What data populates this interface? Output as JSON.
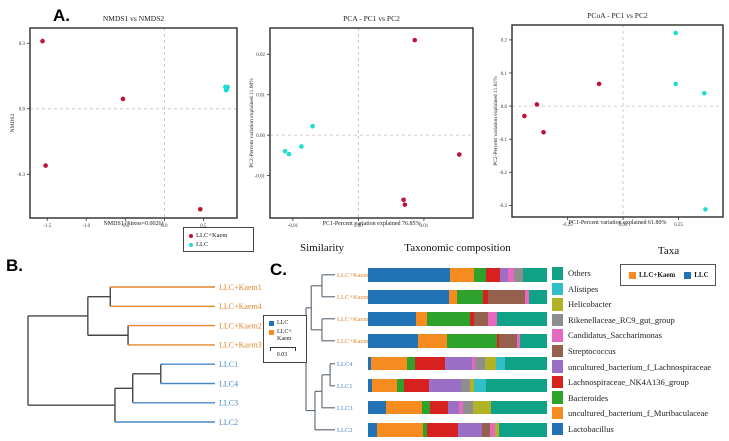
{
  "panels": {
    "a_label": "A.",
    "b_label": "B.",
    "c_label": "C."
  },
  "legend_a": {
    "items": [
      {
        "label": "LLC+Kaem",
        "color": "#BF1238"
      },
      {
        "label": "LLC",
        "color": "#1FDCD2"
      }
    ]
  },
  "legend_b": {
    "items": [
      {
        "label": "LLC",
        "label2": "",
        "color": "#2273B5"
      },
      {
        "label": "LLC+",
        "label2": "Kaem",
        "color": "#F68B1F"
      }
    ],
    "scale_label": "0.03"
  },
  "panel_c": {
    "similarity_header": "Similarity",
    "composition_header": "Taxonomic composition",
    "taxa_header": "Taxa",
    "group_legend": [
      {
        "label": "LLC+Kaem",
        "color": "#F68B1F"
      },
      {
        "label": "LLC",
        "color": "#2273B5"
      }
    ]
  },
  "chart_data": [
    {
      "id": "nmds",
      "type": "scatter",
      "title": "NMDS1 vs NMDS2",
      "xlabel": "NMDS1 (Stress=0.0026)",
      "ylabel": "NMDS2",
      "xlim": [
        -1.72,
        0.93
      ],
      "ylim": [
        -0.5,
        0.37
      ],
      "xticks": [
        "-1.5",
        "-1.0",
        "-0.5",
        "0.0",
        "0.5"
      ],
      "yticks": [
        "0.3",
        "0.0",
        "-0.3"
      ],
      "grid": "dashed zero lines",
      "series": [
        {
          "name": "LLC+Kaem",
          "color": "#BF1238",
          "points": [
            [
              -1.56,
              0.31
            ],
            [
              -0.53,
              0.045
            ],
            [
              -1.52,
              -0.26
            ],
            [
              0.46,
              -0.46
            ]
          ]
        },
        {
          "name": "LLC",
          "color": "#1FDCD2",
          "points": [
            [
              0.78,
              0.1
            ],
            [
              0.8,
              0.09
            ],
            [
              0.79,
              0.085
            ],
            [
              0.81,
              0.1
            ]
          ]
        }
      ]
    },
    {
      "id": "pca",
      "type": "scatter",
      "title": "PCA - PC1 vs PC2",
      "xlabel": "PC1-Percent variation explained 76.85%",
      "ylabel": "PC2-Percent variation explained 11.60%",
      "xlim": [
        -0.0135,
        0.0175
      ],
      "ylim": [
        -0.0205,
        0.0265
      ],
      "xticks": [
        "-0.01",
        "0.00",
        "0.01"
      ],
      "yticks": [
        "0.02",
        "0.01",
        "0.00",
        "-0.01"
      ],
      "grid": "dashed zero lines",
      "series": [
        {
          "name": "LLC+Kaem",
          "color": "#BF1238",
          "points": [
            [
              0.0086,
              0.0235
            ],
            [
              0.0154,
              -0.0048
            ],
            [
              0.0069,
              -0.016
            ],
            [
              0.0071,
              -0.0172
            ]
          ]
        },
        {
          "name": "LLC",
          "color": "#1FDCD2",
          "points": [
            [
              -0.0112,
              -0.004
            ],
            [
              -0.0106,
              -0.0047
            ],
            [
              -0.0087,
              -0.0028
            ],
            [
              -0.007,
              0.0022
            ]
          ]
        }
      ]
    },
    {
      "id": "pcoa",
      "type": "scatter",
      "title": "PCoA - PC1 vs PC2",
      "xlabel": "PC1-Percent variation explained 61.80%",
      "ylabel": "PC2-Percent variation explained 11.81%",
      "xlim": [
        -0.5,
        0.45
      ],
      "ylim": [
        -0.335,
        0.245
      ],
      "xticks": [
        "-0.25",
        "0.00",
        "0.25"
      ],
      "yticks": [
        "0.2",
        "0.1",
        "0.0",
        "-0.1",
        "-0.2",
        "-0.3"
      ],
      "grid": "dashed zero lines",
      "series": [
        {
          "name": "LLC+Kaem",
          "color": "#BF1238",
          "points": [
            [
              -0.108,
              0.067
            ],
            [
              -0.388,
              0.005
            ],
            [
              -0.444,
              -0.03
            ],
            [
              -0.358,
              -0.079
            ]
          ]
        },
        {
          "name": "LLC",
          "color": "#1FDCD2",
          "points": [
            [
              0.237,
              0.221
            ],
            [
              0.237,
              0.067
            ],
            [
              0.366,
              0.039
            ],
            [
              0.371,
              -0.312
            ]
          ]
        }
      ]
    },
    {
      "id": "dendrogram_b",
      "type": "dendrogram",
      "leaves": [
        {
          "id": "K1",
          "label": "LLC+Kaem1",
          "color": "#E2862F"
        },
        {
          "id": "K4",
          "label": "LLC+Kaem4",
          "color": "#E2862F"
        },
        {
          "id": "K2",
          "label": "LLC+Kaem2",
          "color": "#E2862F"
        },
        {
          "id": "K3",
          "label": "LLC+Kaem3",
          "color": "#E2862F"
        },
        {
          "id": "L1",
          "label": "LLC1",
          "color": "#4A89C7"
        },
        {
          "id": "L4",
          "label": "LLC4",
          "color": "#4A89C7"
        },
        {
          "id": "L3",
          "label": "LLC3",
          "color": "#4A89C7"
        },
        {
          "id": "L2",
          "label": "LLC2",
          "color": "#4A89C7"
        }
      ],
      "nodes": [
        {
          "id": "m1",
          "a": "K1",
          "b": "K4",
          "h": 0.56
        },
        {
          "id": "m2",
          "a": "K2",
          "b": "K3",
          "h": 0.465
        },
        {
          "id": "mK",
          "a": "m1",
          "b": "m2",
          "h": 0.68
        },
        {
          "id": "m3",
          "a": "L1",
          "b": "L4",
          "h": 0.29
        },
        {
          "id": "m4",
          "a": "m3",
          "b": "L3",
          "h": 0.44
        },
        {
          "id": "m5",
          "a": "m4",
          "b": "L2",
          "h": 0.535
        },
        {
          "id": "root",
          "a": "mK",
          "b": "m5",
          "h": 1.0
        }
      ]
    },
    {
      "id": "dendrogram_c",
      "type": "dendrogram",
      "leaves": [
        {
          "id": "K4",
          "label": "LLC+Kaem4",
          "color": "#E2862F"
        },
        {
          "id": "K1",
          "label": "LLC+Kaem1",
          "color": "#E2862F"
        },
        {
          "id": "K3",
          "label": "LLC+Kaem3",
          "color": "#E2862F"
        },
        {
          "id": "K2",
          "label": "LLC+Kaem2",
          "color": "#E2862F"
        },
        {
          "id": "L4",
          "label": "LLC4",
          "color": "#4A89C7"
        },
        {
          "id": "L1",
          "label": "LLC1",
          "color": "#4A89C7"
        },
        {
          "id": "L3",
          "label": "LLC3",
          "color": "#4A89C7"
        },
        {
          "id": "L2",
          "label": "LLC2",
          "color": "#4A89C7"
        }
      ],
      "nodes": [
        {
          "id": "n1",
          "a": "K4",
          "b": "K1",
          "h": 0.45
        },
        {
          "id": "n2",
          "a": "K3",
          "b": "K2",
          "h": 0.45
        },
        {
          "id": "nK",
          "a": "n1",
          "b": "n2",
          "h": 0.82
        },
        {
          "id": "n3",
          "a": "L4",
          "b": "L1",
          "h": 0.17
        },
        {
          "id": "n4",
          "a": "n3",
          "b": "L3",
          "h": 0.45
        },
        {
          "id": "n5",
          "a": "n4",
          "b": "L2",
          "h": 0.69
        },
        {
          "id": "root",
          "a": "nK",
          "b": "n5",
          "h": 1.0
        }
      ]
    },
    {
      "id": "taxonomic_composition",
      "type": "stacked_bar",
      "unit": "percent of community",
      "taxa": [
        {
          "name": "Others",
          "color": "#0FA287"
        },
        {
          "name": "Alistipes",
          "color": "#30BEC9"
        },
        {
          "name": "Helicobacter",
          "color": "#B2B226"
        },
        {
          "name": "Rikenellaceae_RC9_gut_group",
          "color": "#8E8E8E"
        },
        {
          "name": "Candidatus_Saccharimonas",
          "color": "#E768C0"
        },
        {
          "name": "Streptococcus",
          "color": "#96604E"
        },
        {
          "name": "uncultured_bacterium_f_Lachnospiraceae",
          "color": "#9B6FC6"
        },
        {
          "name": "Lachnospiraceae_NK4A136_group",
          "color": "#D7211E"
        },
        {
          "name": "Bacteroides",
          "color": "#2EA22B"
        },
        {
          "name": "uncultured_bacterium_f_Muribaculaceae",
          "color": "#F68B1F"
        },
        {
          "name": "Lactobacillus",
          "color": "#2273B5"
        }
      ],
      "rows": [
        {
          "label": "LLC+Kaem4",
          "group": "LLC+Kaem",
          "segments": [
            [
              "Lactobacillus",
              46
            ],
            [
              "uncultured_bacterium_f_Muribaculaceae",
              13
            ],
            [
              "Bacteroides",
              7
            ],
            [
              "Lachnospiraceae_NK4A136_group",
              8
            ],
            [
              "uncultured_bacterium_f_Lachnospiraceae",
              4
            ],
            [
              "Candidatus_Saccharimonas",
              3.5
            ],
            [
              "Rikenellaceae_RC9_gut_group",
              5
            ],
            [
              "Others",
              13.5
            ]
          ]
        },
        {
          "label": "LLC+Kaem1",
          "group": "LLC+Kaem",
          "segments": [
            [
              "Lactobacillus",
              45
            ],
            [
              "uncultured_bacterium_f_Muribaculaceae",
              5
            ],
            [
              "Bacteroides",
              14
            ],
            [
              "Lachnospiraceae_NK4A136_group",
              3
            ],
            [
              "Streptococcus",
              21
            ],
            [
              "Candidatus_Saccharimonas",
              2
            ],
            [
              "Others",
              10
            ]
          ]
        },
        {
          "label": "LLC+Kaem3",
          "group": "LLC+Kaem",
          "segments": [
            [
              "Lactobacillus",
              27
            ],
            [
              "uncultured_bacterium_f_Muribaculaceae",
              6
            ],
            [
              "Bacteroides",
              24
            ],
            [
              "Lachnospiraceae_NK4A136_group",
              2
            ],
            [
              "Streptococcus",
              8
            ],
            [
              "Candidatus_Saccharimonas",
              5
            ],
            [
              "Others",
              28
            ]
          ]
        },
        {
          "label": "LLC+Kaem2",
          "group": "LLC+Kaem",
          "segments": [
            [
              "Lactobacillus",
              28
            ],
            [
              "uncultured_bacterium_f_Muribaculaceae",
              16
            ],
            [
              "Bacteroides",
              28
            ],
            [
              "Lachnospiraceae_NK4A136_group",
              1
            ],
            [
              "Streptococcus",
              10
            ],
            [
              "Candidatus_Saccharimonas",
              2
            ],
            [
              "Others",
              15
            ]
          ]
        },
        {
          "label": "LLC4",
          "group": "LLC",
          "segments": [
            [
              "Lactobacillus",
              1.5
            ],
            [
              "uncultured_bacterium_f_Muribaculaceae",
              20.5
            ],
            [
              "Bacteroides",
              4
            ],
            [
              "Lachnospiraceae_NK4A136_group",
              17
            ],
            [
              "uncultured_bacterium_f_Lachnospiraceae",
              15
            ],
            [
              "Candidatus_Saccharimonas",
              2
            ],
            [
              "Rikenellaceae_RC9_gut_group",
              5.5
            ],
            [
              "Helicobacter",
              6
            ],
            [
              "Alistipes",
              5
            ],
            [
              "Others",
              23.5
            ]
          ]
        },
        {
          "label": "LLC1",
          "group": "LLC",
          "segments": [
            [
              "Lactobacillus",
              2
            ],
            [
              "uncultured_bacterium_f_Muribaculaceae",
              14
            ],
            [
              "Bacteroides",
              4
            ],
            [
              "Lachnospiraceae_NK4A136_group",
              14
            ],
            [
              "uncultured_bacterium_f_Lachnospiraceae",
              18
            ],
            [
              "Rikenellaceae_RC9_gut_group",
              5
            ],
            [
              "Helicobacter",
              2
            ],
            [
              "Alistipes",
              7
            ],
            [
              "Others",
              34
            ]
          ]
        },
        {
          "label": "LLC3",
          "group": "LLC",
          "segments": [
            [
              "Lactobacillus",
              10
            ],
            [
              "uncultured_bacterium_f_Muribaculaceae",
              20
            ],
            [
              "Bacteroides",
              4.5
            ],
            [
              "Lachnospiraceae_NK4A136_group",
              10
            ],
            [
              "uncultured_bacterium_f_Lachnospiraceae",
              6.5
            ],
            [
              "Candidatus_Saccharimonas",
              2
            ],
            [
              "Rikenellaceae_RC9_gut_group",
              5.5
            ],
            [
              "Helicobacter",
              10
            ],
            [
              "Others",
              31.5
            ]
          ]
        },
        {
          "label": "LLC2",
          "group": "LLC",
          "segments": [
            [
              "Lactobacillus",
              5
            ],
            [
              "uncultured_bacterium_f_Muribaculaceae",
              26
            ],
            [
              "Bacteroides",
              2
            ],
            [
              "Lachnospiraceae_NK4A136_group",
              17.5
            ],
            [
              "uncultured_bacterium_f_Lachnospiraceae",
              13
            ],
            [
              "Streptococcus",
              4.5
            ],
            [
              "Candidatus_Saccharimonas",
              3
            ],
            [
              "Helicobacter",
              2
            ],
            [
              "Others",
              27
            ]
          ]
        }
      ]
    }
  ]
}
